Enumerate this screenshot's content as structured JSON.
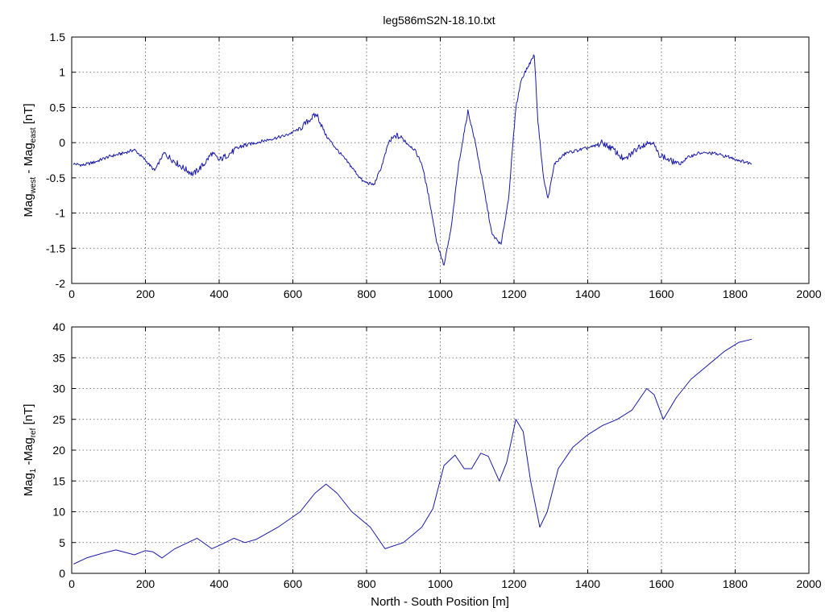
{
  "chart_data": [
    {
      "type": "line",
      "title": "leg586mS2N-18.10.txt",
      "xlabel": "",
      "ylabel": {
        "main1": "Mag",
        "sub1": "west",
        "main2": " - Mag",
        "sub2": "east",
        "unit": " [nT]"
      },
      "xlim": [
        0,
        2000
      ],
      "ylim": [
        -2,
        1.5
      ],
      "xticks": [
        0,
        200,
        400,
        600,
        800,
        1000,
        1200,
        1400,
        1600,
        1800,
        2000
      ],
      "yticks": [
        -2,
        -1.5,
        -1,
        -0.5,
        0,
        0.5,
        1,
        1.5
      ],
      "xtick_labels": [
        "0",
        "200",
        "400",
        "600",
        "800",
        "1000",
        "1200",
        "1400",
        "1600",
        "1800",
        "2000"
      ],
      "ytick_labels": [
        "-2",
        "-1.5",
        "-1",
        "-0.5",
        "0",
        "0.5",
        "1",
        "1.5"
      ],
      "grid": true,
      "series": [
        {
          "color": "#1a1aa8",
          "x": [
            5,
            30,
            60,
            100,
            140,
            170,
            200,
            225,
            250,
            275,
            300,
            330,
            360,
            380,
            400,
            430,
            460,
            500,
            540,
            580,
            620,
            650,
            665,
            690,
            720,
            760,
            790,
            820,
            840,
            860,
            880,
            900,
            930,
            950,
            970,
            990,
            1010,
            1030,
            1050,
            1075,
            1095,
            1120,
            1140,
            1165,
            1185,
            1205,
            1220,
            1240,
            1255,
            1265,
            1280,
            1292,
            1310,
            1340,
            1380,
            1420,
            1440,
            1470,
            1500,
            1540,
            1575,
            1590,
            1620,
            1650,
            1675,
            1700,
            1740,
            1780,
            1810,
            1845
          ],
          "y": [
            -0.3,
            -0.32,
            -0.28,
            -0.2,
            -0.15,
            -0.1,
            -0.25,
            -0.4,
            -0.15,
            -0.25,
            -0.35,
            -0.45,
            -0.3,
            -0.15,
            -0.25,
            -0.15,
            -0.05,
            0,
            0.05,
            0.1,
            0.2,
            0.35,
            0.4,
            0.1,
            -0.1,
            -0.35,
            -0.55,
            -0.6,
            -0.35,
            0,
            0.1,
            0.05,
            -0.1,
            -0.3,
            -0.8,
            -1.4,
            -1.75,
            -1.2,
            -0.3,
            0.45,
            0,
            -0.7,
            -1.3,
            -1.45,
            -0.8,
            0.5,
            0.9,
            1.1,
            1.25,
            0.3,
            -0.5,
            -0.8,
            -0.3,
            -0.15,
            -0.1,
            -0.05,
            0,
            -0.1,
            -0.25,
            -0.05,
            0.02,
            -0.15,
            -0.25,
            -0.3,
            -0.2,
            -0.15,
            -0.15,
            -0.2,
            -0.25,
            -0.3
          ]
        }
      ]
    },
    {
      "type": "line",
      "title": "",
      "xlabel": "North - South Position [m]",
      "ylabel": {
        "main1": "Mag",
        "sub1": "1",
        "main2": " -Mag",
        "sub2": "ref",
        "unit": "  [nT]"
      },
      "xlim": [
        0,
        2000
      ],
      "ylim": [
        0,
        40
      ],
      "xticks": [
        0,
        200,
        400,
        600,
        800,
        1000,
        1200,
        1400,
        1600,
        1800,
        2000
      ],
      "yticks": [
        0,
        5,
        10,
        15,
        20,
        25,
        30,
        35,
        40
      ],
      "xtick_labels": [
        "0",
        "200",
        "400",
        "600",
        "800",
        "1000",
        "1200",
        "1400",
        "1600",
        "1800",
        "2000"
      ],
      "ytick_labels": [
        "0",
        "5",
        "10",
        "15",
        "20",
        "25",
        "30",
        "35",
        "40"
      ],
      "grid": true,
      "series": [
        {
          "color": "#1a1aa8",
          "x": [
            5,
            40,
            80,
            120,
            170,
            200,
            220,
            245,
            280,
            340,
            380,
            410,
            440,
            470,
            500,
            560,
            620,
            660,
            690,
            720,
            760,
            810,
            850,
            900,
            950,
            980,
            1010,
            1040,
            1065,
            1085,
            1110,
            1130,
            1160,
            1180,
            1205,
            1225,
            1245,
            1270,
            1290,
            1320,
            1360,
            1400,
            1440,
            1480,
            1520,
            1560,
            1580,
            1605,
            1640,
            1680,
            1720,
            1770,
            1810,
            1845
          ],
          "y": [
            1.5,
            2.5,
            3.2,
            3.8,
            3.0,
            3.7,
            3.5,
            2.5,
            4.0,
            5.7,
            4.0,
            4.8,
            5.7,
            5.0,
            5.5,
            7.5,
            10.0,
            13.0,
            14.5,
            13.0,
            10.0,
            7.5,
            4.0,
            5.0,
            7.5,
            10.5,
            17.5,
            19.2,
            17.0,
            17.0,
            19.5,
            19.0,
            15.0,
            18.0,
            25.0,
            23.0,
            15.0,
            7.5,
            10.0,
            17.0,
            20.5,
            22.5,
            24.0,
            25.0,
            26.5,
            30.0,
            29.0,
            25.0,
            28.5,
            31.5,
            33.5,
            36.0,
            37.5,
            38.0
          ]
        }
      ]
    }
  ]
}
